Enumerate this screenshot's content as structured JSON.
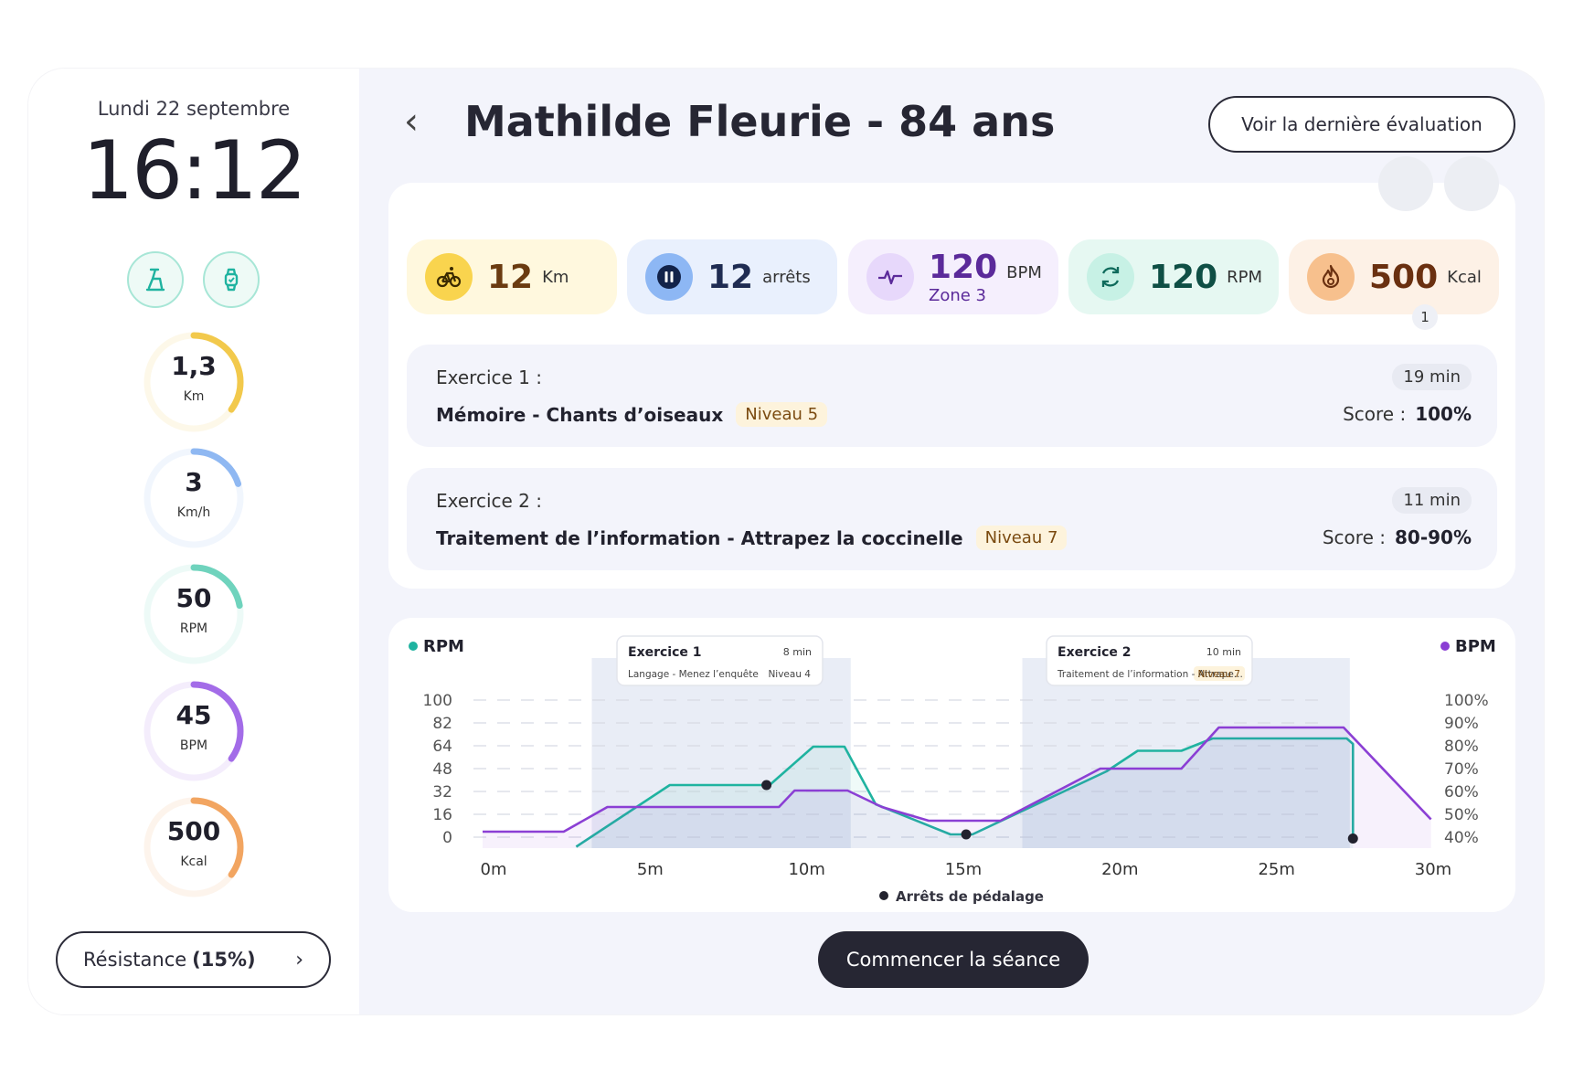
{
  "sidebar": {
    "date": "Lundi 22 septembre",
    "time": "16:12",
    "gauges": [
      {
        "value": "1,3",
        "unit": "Km",
        "fraction": 0.35,
        "color": "#f2c94c"
      },
      {
        "value": "3",
        "unit": "Km/h",
        "fraction": 0.2,
        "color": "#8fb8f2"
      },
      {
        "value": "50",
        "unit": "RPM",
        "fraction": 0.22,
        "color": "#6fd3bd"
      },
      {
        "value": "45",
        "unit": "BPM",
        "fraction": 0.35,
        "color": "#a36ce8"
      },
      {
        "value": "500",
        "unit": "Kcal",
        "fraction": 0.35,
        "color": "#f2a561"
      }
    ],
    "resistance_label": "Résistance",
    "resistance_value": "(15%)"
  },
  "header": {
    "title": "Mathilde Fleurie - 84 ans",
    "eval_button": "Voir la dernière évaluation"
  },
  "stats": [
    {
      "value": "12",
      "unit": "Km"
    },
    {
      "value": "12",
      "unit": "arrêts"
    },
    {
      "value": "120",
      "unit": "BPM",
      "sub": "Zone 3"
    },
    {
      "value": "120",
      "unit": "RPM"
    },
    {
      "value": "500",
      "unit": "Kcal",
      "badge": "1"
    }
  ],
  "exercises": [
    {
      "label": "Exercice 1 :",
      "name": "Mémoire - Chants d’oiseaux",
      "level": "Niveau 5",
      "duration": "19 min",
      "score_label": "Score :",
      "score": "100%"
    },
    {
      "label": "Exercice 2 :",
      "name": "Traitement de l’information - Attrapez la coccinelle",
      "level": "Niveau 7",
      "duration": "11 min",
      "score_label": "Score :",
      "score": "80-90%"
    }
  ],
  "chart_data": {
    "type": "line",
    "left_series_label": "RPM",
    "right_series_label": "BPM",
    "x_ticks": [
      "0m",
      "5m",
      "10m",
      "15m",
      "20m",
      "25m",
      "30m"
    ],
    "xlim": [
      0,
      30.5
    ],
    "y_left_ticks": [
      "100",
      "82",
      "64",
      "48",
      "32",
      "16",
      "0"
    ],
    "y_right_ticks": [
      "100%",
      "90%",
      "80%",
      "70%",
      "60%",
      "50%",
      "40%"
    ],
    "legend_stops": "Arrêts de pédalage",
    "series": [
      {
        "name": "RPM",
        "color": "#1fb3a0",
        "points": [
          [
            3,
            -7
          ],
          [
            6,
            38
          ],
          [
            9.2,
            38
          ],
          [
            10.6,
            66
          ],
          [
            11.6,
            66
          ],
          [
            12.6,
            24
          ],
          [
            15,
            2
          ],
          [
            15.7,
            2
          ],
          [
            20,
            48
          ],
          [
            21,
            63
          ],
          [
            22.4,
            63
          ],
          [
            23.4,
            72
          ],
          [
            27.7,
            72
          ],
          [
            27.9,
            68
          ],
          [
            27.9,
            0
          ]
        ]
      },
      {
        "name": "BPM",
        "color": "#8b3fd4",
        "points": [
          [
            0,
            4
          ],
          [
            2.6,
            4
          ],
          [
            4,
            22
          ],
          [
            9.5,
            22
          ],
          [
            10,
            34
          ],
          [
            11.7,
            34
          ],
          [
            12.8,
            22
          ],
          [
            14.3,
            12
          ],
          [
            16.6,
            12
          ],
          [
            19.8,
            50
          ],
          [
            22.4,
            50
          ],
          [
            23.6,
            80
          ],
          [
            27.6,
            80
          ],
          [
            30.4,
            13
          ]
        ]
      }
    ],
    "stops": [
      [
        9.1,
        38
      ],
      [
        15.5,
        2
      ],
      [
        27.9,
        -1
      ]
    ],
    "exercise_callouts": [
      {
        "title": "Exercice 1",
        "duration": "8 min",
        "subtitle": "Langage - Menez l’enquête",
        "level": "Niveau 4",
        "x_start": 3.5,
        "x_end": 11.8
      },
      {
        "title": "Exercice 2",
        "duration": "10 min",
        "subtitle": "Traitement de l’information - Attrape...",
        "level": "Niveau 7",
        "x_start": 17.3,
        "x_end": 27.8
      }
    ]
  },
  "footer": {
    "start_button": "Commencer la séance"
  }
}
